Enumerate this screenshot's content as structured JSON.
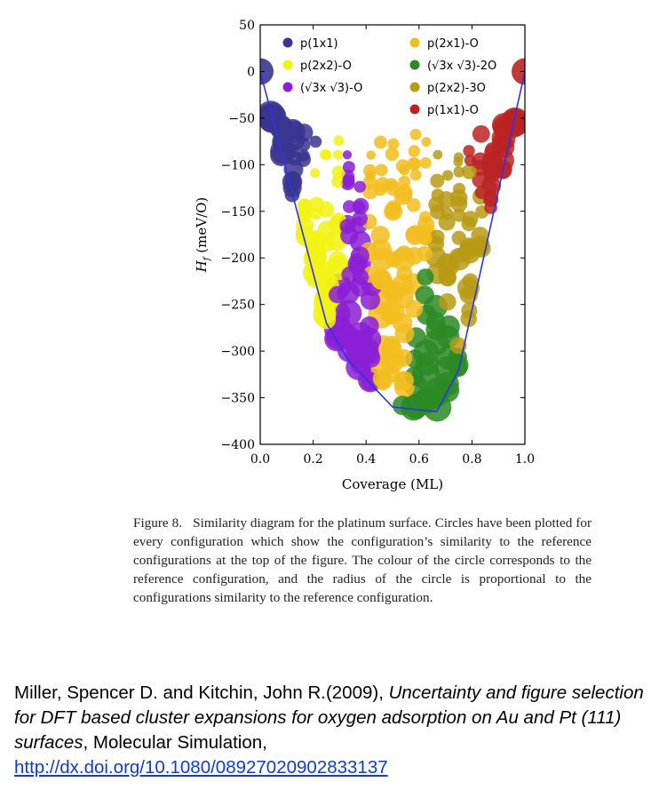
{
  "chart_data": {
    "type": "scatter",
    "xlabel": "Coverage (ML)",
    "ylabel": "H_f (meV/O)",
    "xlim": [
      0.0,
      1.0
    ],
    "ylim": [
      -400,
      50
    ],
    "x_ticks": [
      "0.0",
      "0.2",
      "0.4",
      "0.6",
      "0.8",
      "1.0"
    ],
    "y_ticks": [
      "50",
      "0",
      "−50",
      "−100",
      "−150",
      "−200",
      "−250",
      "−300",
      "−350",
      "−400"
    ],
    "legend": [
      {
        "label": "p(1x1)",
        "color": "#3a3591"
      },
      {
        "label": "p(2x2)-O",
        "color": "#f2f214"
      },
      {
        "label": "(√3x √3)-O",
        "color": "#8b1fd6"
      },
      {
        "label": "p(2x1)-O",
        "color": "#f2bd1e"
      },
      {
        "label": "(√3x √3)-2O",
        "color": "#2a8a23"
      },
      {
        "label": "p(2x2)-3O",
        "color": "#b89a14"
      },
      {
        "label": "p(1x1)-O",
        "color": "#bb2323"
      }
    ],
    "hull": {
      "x": [
        0.0,
        0.25,
        0.3333,
        0.5,
        0.6667,
        0.75,
        1.0
      ],
      "y": [
        0,
        -270,
        -310,
        -360,
        -365,
        -320,
        0
      ]
    },
    "endpoints": [
      {
        "x": 0.0,
        "y": 0,
        "series": "p(1x1)"
      },
      {
        "x": 1.0,
        "y": 0,
        "series": "p(1x1)-O"
      }
    ],
    "grid": false
  },
  "caption": {
    "label": "Figure 8.",
    "text": "Similarity diagram for the platinum surface. Circles have been plotted for every configuration which show the configuration’s similarity to the reference configurations at the top of the figure. The colour of the circle corresponds to the reference configuration, and the radius of the circle is proportional to the configurations similarity to the reference configuration."
  },
  "citation": {
    "authors": "Miller, Spencer D. and Kitchin, John R.(2009), ",
    "title": "Uncertainty and figure selection for DFT based cluster expansions for oxygen adsorption on Au and Pt (111) surfaces",
    "journal": ", Molecular Simulation,",
    "link": "http://dx.doi.org/10.1080/08927020902833137"
  }
}
